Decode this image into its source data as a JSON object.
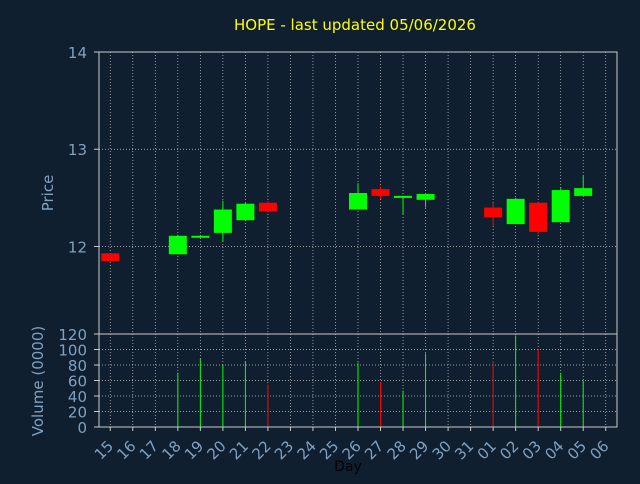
{
  "title": "HOPE - last updated 05/06/2026",
  "colors": {
    "background": "#0f1f30",
    "title": "#ffff00",
    "axis_text": "#7fa1c0",
    "up": "#00ff00",
    "down": "#ff0000",
    "grid": "#c8c8c8",
    "frame": "#c8c8c8"
  },
  "chart_data": [
    {
      "type": "candlestick",
      "ylabel": "Price",
      "ylim": [
        11.1,
        14.0
      ],
      "yticks": [
        12,
        13,
        14
      ],
      "grid": true,
      "x": [
        "15",
        "16",
        "17",
        "18",
        "19",
        "20",
        "21",
        "22",
        "23",
        "24",
        "25",
        "26",
        "27",
        "28",
        "29",
        "30",
        "31",
        "01",
        "02",
        "03",
        "04",
        "05",
        "06"
      ],
      "candles": [
        {
          "x": "15",
          "open": 11.93,
          "high": 11.93,
          "low": 11.85,
          "close": 11.85
        },
        {
          "x": "18",
          "open": 11.92,
          "high": 12.12,
          "low": 11.92,
          "close": 12.11
        },
        {
          "x": "19",
          "open": 12.1,
          "high": 12.12,
          "low": 12.1,
          "close": 12.11
        },
        {
          "x": "20",
          "open": 12.14,
          "high": 12.47,
          "low": 12.05,
          "close": 12.38
        },
        {
          "x": "21",
          "open": 12.27,
          "high": 12.45,
          "low": 12.27,
          "close": 12.44
        },
        {
          "x": "22",
          "open": 12.45,
          "high": 12.47,
          "low": 12.35,
          "close": 12.36
        },
        {
          "x": "26",
          "open": 12.38,
          "high": 12.65,
          "low": 12.38,
          "close": 12.55
        },
        {
          "x": "27",
          "open": 12.59,
          "high": 12.62,
          "low": 12.49,
          "close": 12.52
        },
        {
          "x": "28",
          "open": 12.5,
          "high": 12.52,
          "low": 12.33,
          "close": 12.52
        },
        {
          "x": "29",
          "open": 12.48,
          "high": 12.55,
          "low": 12.4,
          "close": 12.54
        },
        {
          "x": "01",
          "open": 12.4,
          "high": 12.45,
          "low": 12.21,
          "close": 12.3
        },
        {
          "x": "02",
          "open": 12.23,
          "high": 12.5,
          "low": 12.23,
          "close": 12.49
        },
        {
          "x": "03",
          "open": 12.45,
          "high": 12.45,
          "low": 12.13,
          "close": 12.15
        },
        {
          "x": "04",
          "open": 12.25,
          "high": 12.6,
          "low": 12.25,
          "close": 12.58
        },
        {
          "x": "05",
          "open": 12.52,
          "high": 12.73,
          "low": 12.52,
          "close": 12.6
        }
      ]
    },
    {
      "type": "bar",
      "ylabel": "Volume (0000)",
      "xlabel": "Day",
      "ylim": [
        0,
        120
      ],
      "yticks": [
        0,
        20,
        40,
        60,
        80,
        100,
        120
      ],
      "grid": true,
      "categories": [
        "15",
        "16",
        "17",
        "18",
        "19",
        "20",
        "21",
        "22",
        "23",
        "24",
        "25",
        "26",
        "27",
        "28",
        "29",
        "30",
        "31",
        "01",
        "02",
        "03",
        "04",
        "05",
        "06"
      ],
      "values": [
        0,
        0,
        0,
        70,
        88,
        80,
        85,
        55,
        0,
        0,
        0,
        83,
        58,
        47,
        95,
        0,
        0,
        85,
        118,
        100,
        70,
        60,
        0
      ],
      "direction": [
        "down",
        "none",
        "none",
        "up",
        "up",
        "up",
        "up",
        "down",
        "none",
        "none",
        "none",
        "up",
        "down",
        "up",
        "up",
        "none",
        "none",
        "down",
        "up",
        "down",
        "up",
        "up",
        "none"
      ]
    }
  ]
}
